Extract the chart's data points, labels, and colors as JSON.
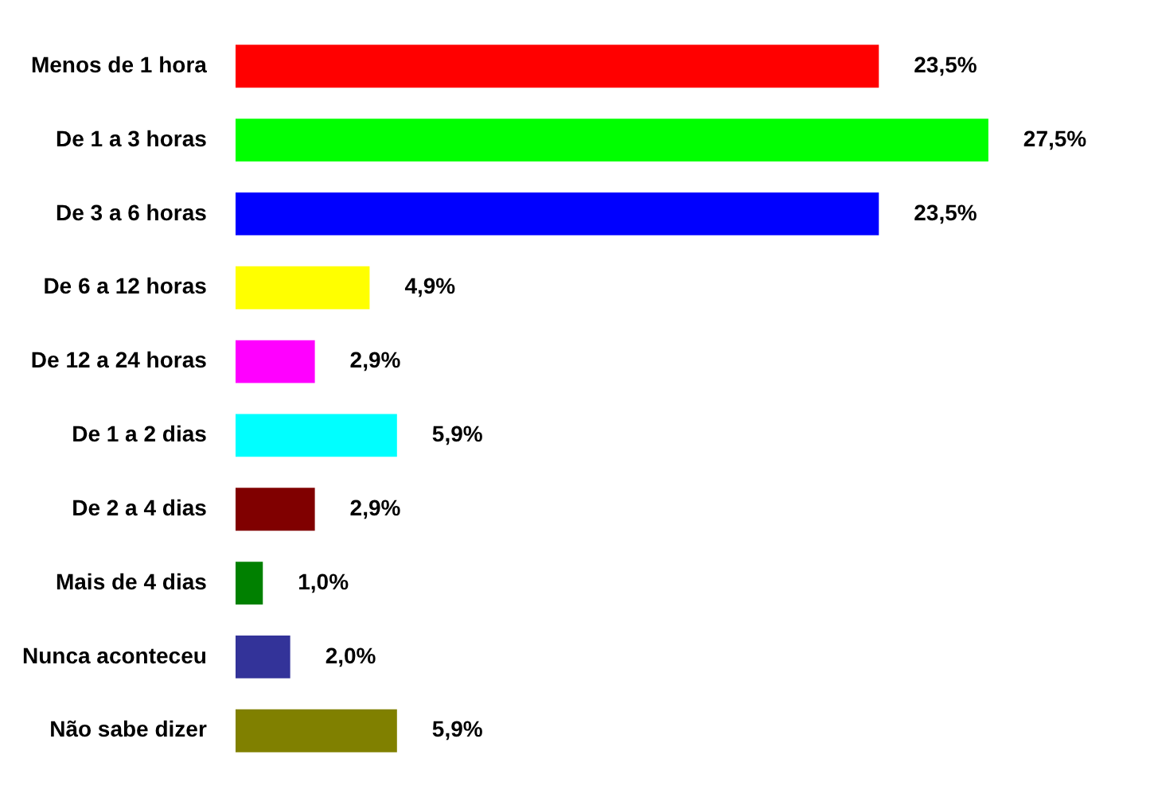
{
  "chart_data": {
    "type": "bar",
    "orientation": "horizontal",
    "categories": [
      "Menos de 1 hora",
      "De 1 a 3 horas",
      "De 3 a 6 horas",
      "De 6 a 12 horas",
      "De 12 a 24 horas",
      "De 1 a 2 dias",
      "De 2 a 4 dias",
      "Mais de 4 dias",
      "Nunca aconteceu",
      "Não sabe dizer"
    ],
    "values": [
      23.5,
      27.5,
      23.5,
      4.9,
      2.9,
      5.9,
      2.9,
      1.0,
      2.0,
      5.9
    ],
    "value_labels": [
      "23,5%",
      "27,5%",
      "23,5%",
      "4,9%",
      "2,9%",
      "5,9%",
      "2,9%",
      "1,0%",
      "2,0%",
      "5,9%"
    ],
    "colors": [
      "#ff0000",
      "#00ff00",
      "#0000ff",
      "#ffff00",
      "#ff00ff",
      "#00ffff",
      "#800000",
      "#008000",
      "#333399",
      "#808000"
    ]
  }
}
